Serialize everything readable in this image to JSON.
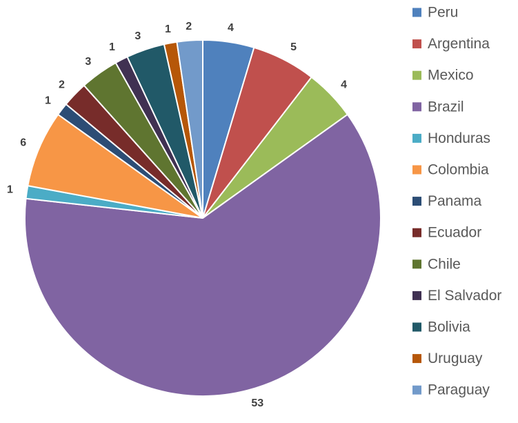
{
  "chart_data": {
    "type": "pie",
    "categories": [
      "Peru",
      "Argentina",
      "Mexico",
      "Brazil",
      "Honduras",
      "Colombia",
      "Panama",
      "Ecuador",
      "Chile",
      "El Salvador",
      "Bolivia",
      "Uruguay",
      "Paraguay"
    ],
    "values": [
      4,
      5,
      4,
      53,
      1,
      6,
      1,
      2,
      3,
      1,
      3,
      1,
      2
    ],
    "colors": [
      "#4f81bd",
      "#c0504d",
      "#9bbb59",
      "#8064a2",
      "#4bacc6",
      "#f79646",
      "#2c4d75",
      "#772c2a",
      "#5f7530",
      "#403152",
      "#215968",
      "#b65708",
      "#729aca"
    ],
    "legend": "right"
  }
}
